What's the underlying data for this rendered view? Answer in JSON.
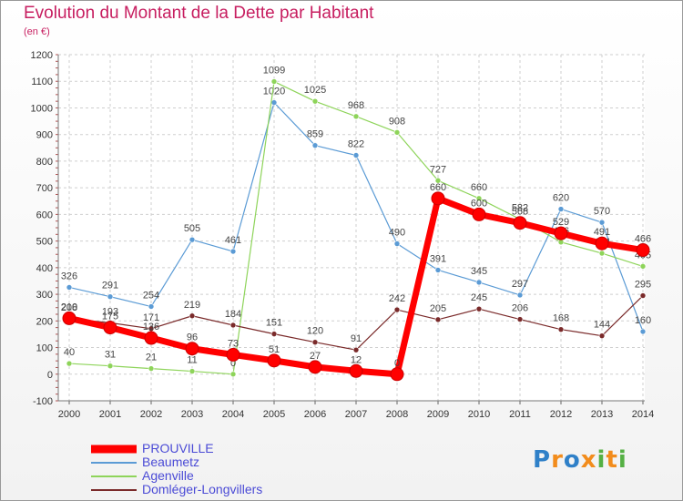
{
  "title": "Evolution du Montant de la Dette par Habitant",
  "subtitle": "(en €)",
  "logo": {
    "letters": [
      "P",
      "r",
      "o",
      "x",
      "i",
      "t",
      "i"
    ],
    "colors": [
      "#2f80c8",
      "#f28c1c",
      "#2f80c8",
      "#f28c1c",
      "#55b044",
      "#f28c1c",
      "#55b044"
    ]
  },
  "chart_data": {
    "type": "line",
    "x": [
      2000,
      2001,
      2002,
      2003,
      2004,
      2005,
      2006,
      2007,
      2008,
      2009,
      2010,
      2011,
      2012,
      2013,
      2014
    ],
    "ylim": [
      -100,
      1200
    ],
    "yticks": [
      -100,
      0,
      100,
      200,
      300,
      400,
      500,
      600,
      700,
      800,
      900,
      1000,
      1100,
      1200
    ],
    "grid": true,
    "legend_position": "bottom-left",
    "series": [
      {
        "name": "Beaumetz",
        "color": "#5b9bd5",
        "values": [
          326,
          291,
          254,
          505,
          461,
          1020,
          859,
          822,
          490,
          391,
          345,
          297,
          620,
          570,
          160
        ]
      },
      {
        "name": "Agenville",
        "color": "#8ed45a",
        "values": [
          40,
          31,
          21,
          11,
          0,
          1099,
          1025,
          968,
          908,
          727,
          660,
          582,
          496,
          454,
          405
        ]
      },
      {
        "name": "Domléger-Longvillers",
        "color": "#7a2a2a",
        "values": [
          208,
          193,
          171,
          219,
          184,
          151,
          120,
          91,
          242,
          205,
          245,
          206,
          168,
          144,
          295
        ]
      },
      {
        "name": "PROUVILLE",
        "color": "#ff0000",
        "values": [
          210,
          175,
          136,
          96,
          73,
          51,
          27,
          12,
          0,
          660,
          600,
          568,
          529,
          491,
          466
        ]
      }
    ],
    "data_labels": {
      "Beaumetz": [
        "326",
        "291",
        "254",
        "505",
        "461",
        "1020",
        "859",
        "822",
        "490",
        "391",
        "345",
        "297",
        "620",
        "570",
        "160"
      ],
      "Agenville": [
        "40",
        "31",
        "21",
        "11",
        "0",
        "1099",
        "1025",
        "968",
        "908",
        "727",
        "660",
        "582",
        "496",
        "454",
        "405"
      ],
      "Domléger-Longvillers": [
        "208",
        "193",
        "171",
        "219",
        "184",
        "151",
        "120",
        "91",
        "242",
        "205",
        "245",
        "206",
        "168",
        "144",
        "295"
      ],
      "PROUVILLE": [
        "210",
        "175",
        "136",
        "96",
        "73",
        "51",
        "27",
        "12",
        "0",
        "660",
        "600",
        "568",
        "529",
        "491",
        "466"
      ]
    }
  }
}
